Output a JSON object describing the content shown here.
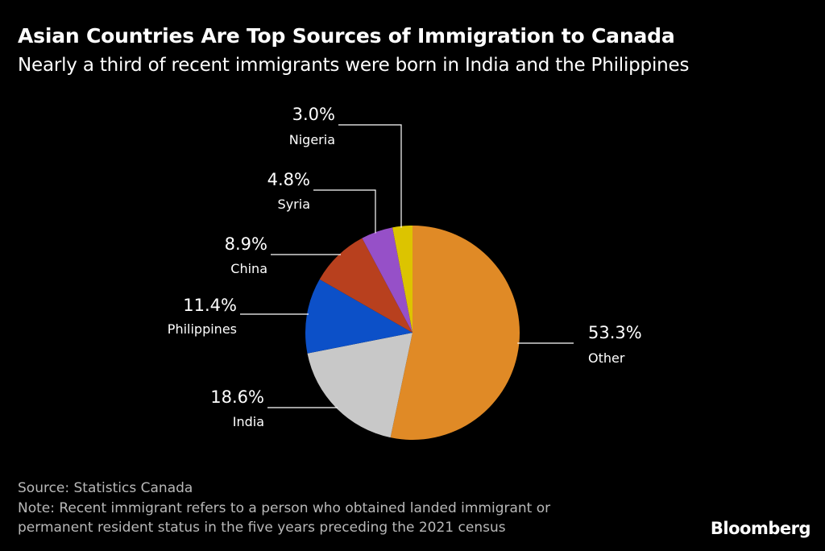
{
  "chart_data": {
    "type": "pie",
    "title": "Asian Countries Are Top Sources of Immigration to Canada",
    "subtitle": "Nearly a third of recent immigrants were born in India and the Philippines",
    "unit": "%",
    "slices": [
      {
        "label": "Other",
        "value": 53.3,
        "value_label": "53.3%",
        "color": "#e08a26"
      },
      {
        "label": "India",
        "value": 18.6,
        "value_label": "18.6%",
        "color": "#c8c8c8"
      },
      {
        "label": "Philippines",
        "value": 11.4,
        "value_label": "11.4%",
        "color": "#0c50c8"
      },
      {
        "label": "China",
        "value": 8.9,
        "value_label": "8.9%",
        "color": "#b8401e"
      },
      {
        "label": "Syria",
        "value": 4.8,
        "value_label": "4.8%",
        "color": "#9650c8"
      },
      {
        "label": "Nigeria",
        "value": 3.0,
        "value_label": "3.0%",
        "color": "#dcc400"
      }
    ],
    "start_angle": "12 o'clock",
    "direction": "clockwise",
    "legend": "none (direct labels)"
  },
  "footer": {
    "source": "Source: Statistics Canada",
    "note_line1": "Note: Recent immigrant refers to a person who obtained landed immigrant or",
    "note_line2": "permanent resident status in the five years preceding the 2021 census"
  },
  "brand": "Bloomberg"
}
